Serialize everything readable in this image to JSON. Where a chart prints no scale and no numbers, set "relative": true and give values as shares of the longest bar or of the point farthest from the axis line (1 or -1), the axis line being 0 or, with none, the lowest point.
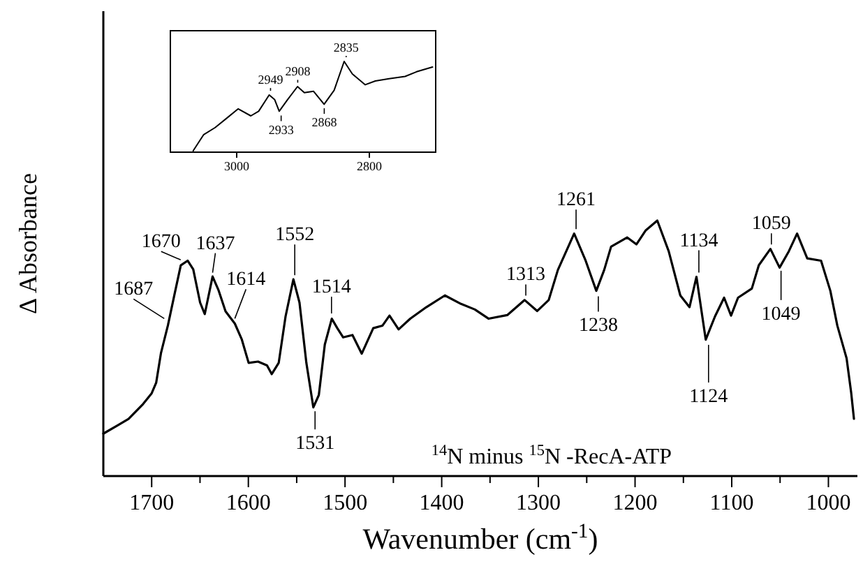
{
  "chart_data": [
    {
      "type": "line",
      "xlabel": "Wavenumber (cm$^{-1}$)",
      "ylabel": "Δ Absorbance",
      "relative": true,
      "color": "#000000",
      "xlim": [
        1750,
        970
      ],
      "xticks": [
        1700,
        {
          "value": 1650,
          "label": null
        },
        1600,
        {
          "value": 1550,
          "label": null
        },
        1500,
        {
          "value": 1450,
          "label": null
        },
        1400,
        {
          "value": 1350,
          "label": null
        },
        1300,
        {
          "value": 1250,
          "label": null
        },
        1200,
        {
          "value": 1150,
          "label": null
        },
        1100,
        {
          "value": 1050,
          "label": null
        },
        1000
      ],
      "x": [
        1750,
        1735.8,
        1723.9,
        1709.6,
        1700,
        1695.3,
        1690.4,
        1683.2,
        1676.1,
        1669.9,
        1662.8,
        1657,
        1649.9,
        1645.1,
        1637,
        1630.8,
        1623.6,
        1614,
        1606.9,
        1599.7,
        1590,
        1580.7,
        1575.8,
        1568.6,
        1561.5,
        1553.4,
        1547.1,
        1540,
        1532.8,
        1527.1,
        1520.9,
        1513.7,
        1508,
        1501.9,
        1492.3,
        1482.7,
        1470.8,
        1461.2,
        1454,
        1444.6,
        1432.5,
        1415.9,
        1396.7,
        1380.1,
        1365.7,
        1351.4,
        1332.2,
        1314.2,
        1301.3,
        1289.3,
        1279.8,
        1263,
        1251.1,
        1240.1,
        1231.9,
        1224.8,
        1208.1,
        1198.6,
        1188.9,
        1177,
        1165.2,
        1153.2,
        1143.7,
        1136.5,
        1126.9,
        1117.3,
        1107.9,
        1100.7,
        1093.5,
        1079.2,
        1072,
        1060,
        1050.5,
        1040.9,
        1032.4,
        1021.9,
        1007.6,
        998,
        990.8,
        981.2,
        976.5,
        973.6
      ],
      "values": [
        0.166,
        0.197,
        0.224,
        0.279,
        0.324,
        0.366,
        0.481,
        0.59,
        0.716,
        0.825,
        0.843,
        0.809,
        0.679,
        0.634,
        0.781,
        0.727,
        0.645,
        0.597,
        0.536,
        0.443,
        0.448,
        0.433,
        0.399,
        0.443,
        0.625,
        0.77,
        0.679,
        0.443,
        0.269,
        0.317,
        0.515,
        0.616,
        0.579,
        0.543,
        0.552,
        0.479,
        0.579,
        0.589,
        0.628,
        0.574,
        0.616,
        0.661,
        0.707,
        0.674,
        0.652,
        0.616,
        0.63,
        0.689,
        0.646,
        0.689,
        0.807,
        0.949,
        0.843,
        0.725,
        0.807,
        0.898,
        0.934,
        0.907,
        0.962,
        1,
        0.88,
        0.707,
        0.661,
        0.78,
        0.534,
        0.625,
        0.698,
        0.628,
        0.698,
        0.734,
        0.825,
        0.889,
        0.816,
        0.88,
        0.949,
        0.852,
        0.843,
        0.725,
        0.589,
        0.461,
        0.328,
        0.224
      ],
      "annotations": [
        {
          "text": "1687",
          "x": 1687,
          "y": 0.6
        },
        {
          "text": "1670",
          "x": 1670,
          "y": 0.83
        },
        {
          "text": "1637",
          "x": 1637,
          "y": 0.78
        },
        {
          "text": "1614",
          "x": 1614,
          "y": 0.6
        },
        {
          "text": "1552",
          "x": 1552,
          "y": 0.77
        },
        {
          "text": "1514",
          "x": 1514,
          "y": 0.62
        },
        {
          "text": "1531",
          "x": 1531,
          "y": 0.27
        },
        {
          "text": "1313",
          "x": 1313,
          "y": 0.69
        },
        {
          "text": "1261",
          "x": 1261,
          "y": 0.95
        },
        {
          "text": "1238",
          "x": 1238,
          "y": 0.72
        },
        {
          "text": "1134",
          "x": 1134,
          "y": 0.78
        },
        {
          "text": "1124",
          "x": 1124,
          "y": 0.53
        },
        {
          "text": "1059",
          "x": 1059,
          "y": 0.89
        },
        {
          "text": "1049",
          "x": 1049,
          "y": 0.82
        },
        "$^{14}$N minus $^{15}$N -RecA-ATP"
      ]
    },
    {
      "type": "line",
      "relative": true,
      "color": "#000000",
      "xlim": [
        3100,
        2700
      ],
      "xticks": [
        3000,
        2800
      ],
      "x": [
        3065.6,
        3049.7,
        3032.5,
        3015.1,
        2997.9,
        2978.7,
        2966.9,
        2951,
        2942.7,
        2935.9,
        2923.4,
        2908.3,
        2898,
        2884.1,
        2868.2,
        2853.1,
        2838,
        2825.6,
        2806.2,
        2791,
        2770.3,
        2746.1,
        2728.9,
        2704.8
      ],
      "values": [
        0.015,
        0.194,
        0.271,
        0.374,
        0.477,
        0.4,
        0.451,
        0.631,
        0.578,
        0.451,
        0.578,
        0.723,
        0.655,
        0.671,
        0.528,
        0.682,
        1,
        0.862,
        0.743,
        0.785,
        0.809,
        0.835,
        0.886,
        0.938
      ],
      "annotations": [
        {
          "text": "2949",
          "x": 2949,
          "y": 0.63
        },
        {
          "text": "2933",
          "x": 2933,
          "y": 0.45
        },
        {
          "text": "2908",
          "x": 2908,
          "y": 0.72
        },
        {
          "text": "2868",
          "x": 2868,
          "y": 0.53
        },
        {
          "text": "2835",
          "x": 2835,
          "y": 1
        }
      ]
    }
  ]
}
